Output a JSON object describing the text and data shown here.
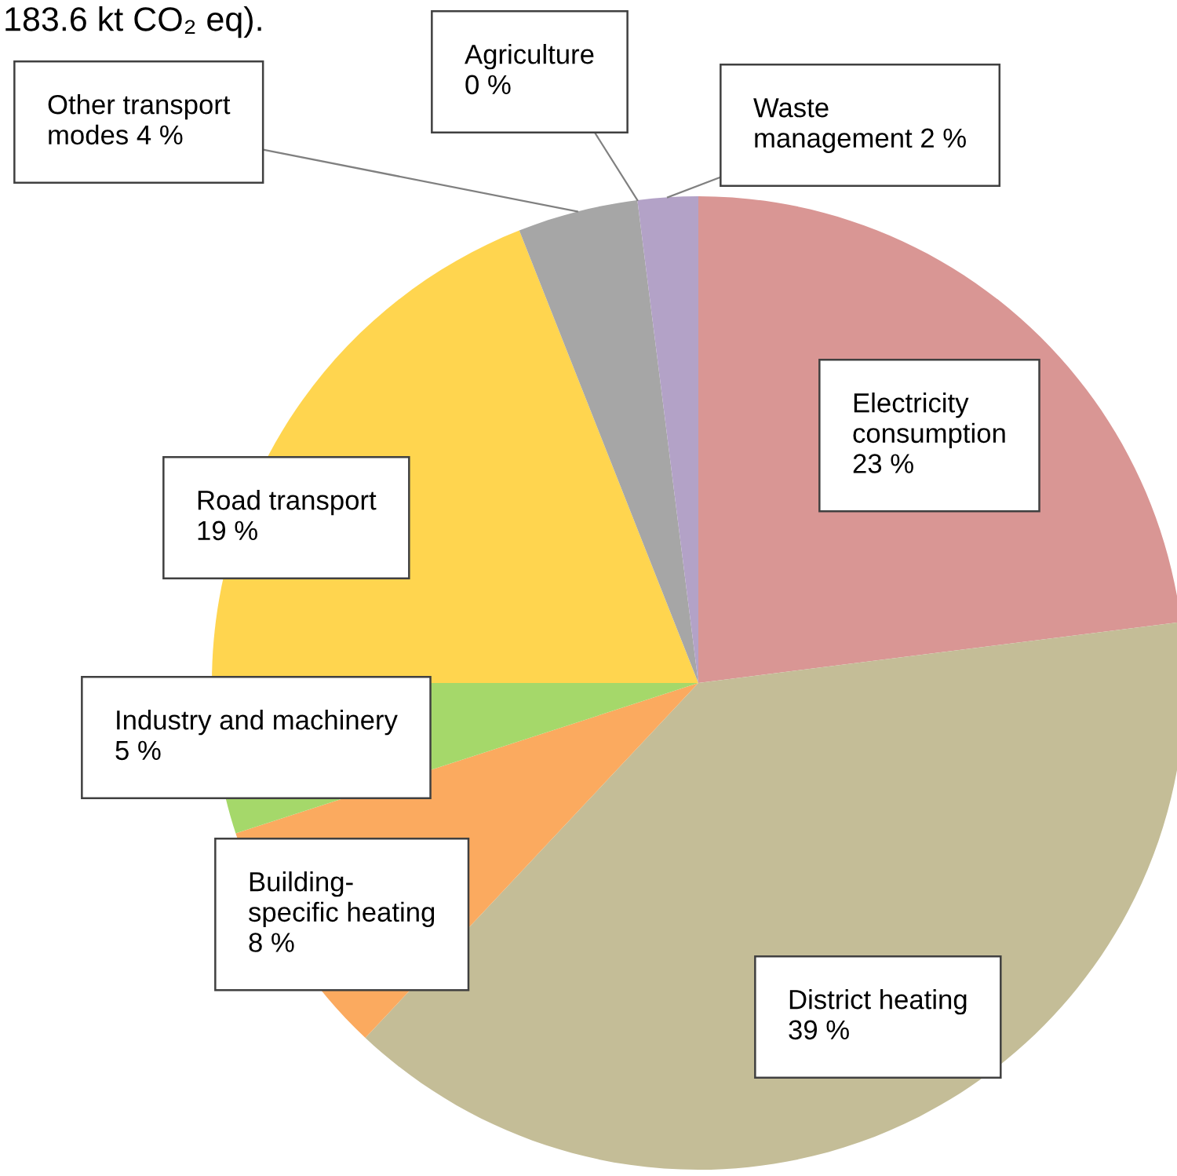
{
  "chart_data": {
    "type": "pie",
    "categories": [
      "Electricity consumption",
      "District heating",
      "Building-specific heating",
      "Industry and machinery",
      "Road transport",
      "Other transport modes",
      "Agriculture",
      "Waste management"
    ],
    "values": [
      23,
      39,
      8,
      5,
      19,
      4,
      0,
      2
    ],
    "value_labels": [
      "23 %",
      "39 %",
      "8 %",
      "5 %",
      "19 %",
      "4 %",
      "0 %",
      "2 %"
    ],
    "colors": [
      "#d99694",
      "#c4bd97",
      "#fbaa5f",
      "#a5d86a",
      "#ffd54f",
      "#a6a6a6",
      "#93cddd",
      "#b3a2c7"
    ],
    "annotations": [
      "183.6 kt CO₂ eq)."
    ]
  }
}
